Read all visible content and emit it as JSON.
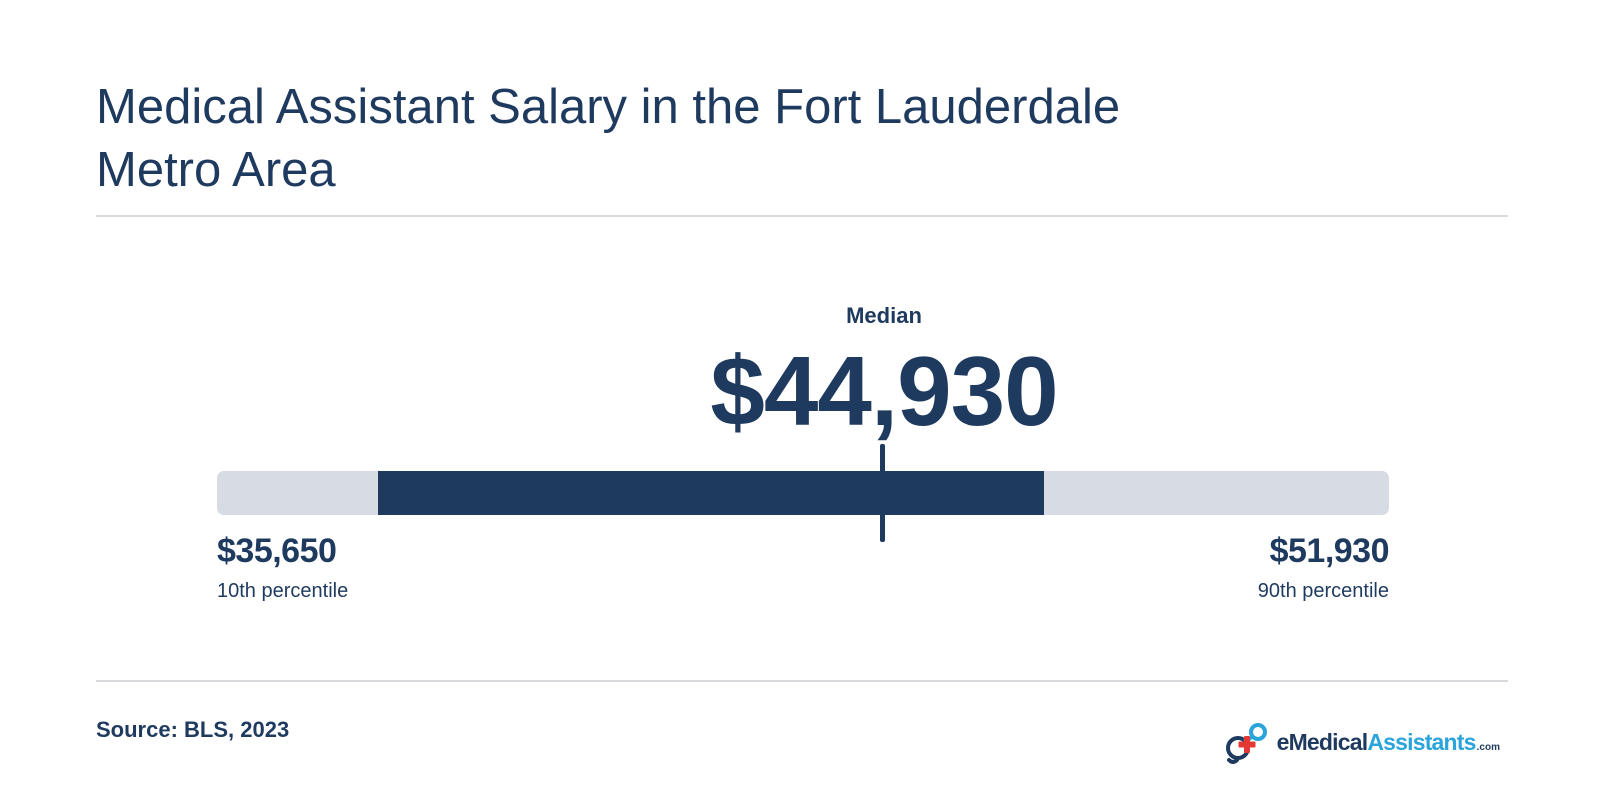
{
  "header": {
    "title": "Medical Assistant Salary in the Fort Lauderdale Metro Area"
  },
  "chart_data": {
    "type": "range",
    "median_label": "Median",
    "median_value_text": "$44,930",
    "low_value_text": "$35,650",
    "low_label": "10th percentile",
    "high_value_text": "$51,930",
    "high_label": "90th percentile",
    "values": {
      "p10": 35650,
      "median": 44930,
      "p90": 51930
    },
    "track_fill_fraction": [
      0.137,
      0.706
    ],
    "median_position_fraction": 0.568
  },
  "footer": {
    "source": "Source: BLS, 2023",
    "logo": {
      "part_e": "e",
      "part_medical": "Medical",
      "part_assistants": "Assistants",
      "part_com": ".com"
    }
  },
  "colors": {
    "primary": "#1f3a5f",
    "track": "#d7dbe3",
    "divider": "#d9dadd",
    "logo_accent_blue": "#29a5dc",
    "logo_accent_red": "#e53935"
  },
  "icons": {
    "logo_mark": "medical-cross-logo-icon"
  }
}
